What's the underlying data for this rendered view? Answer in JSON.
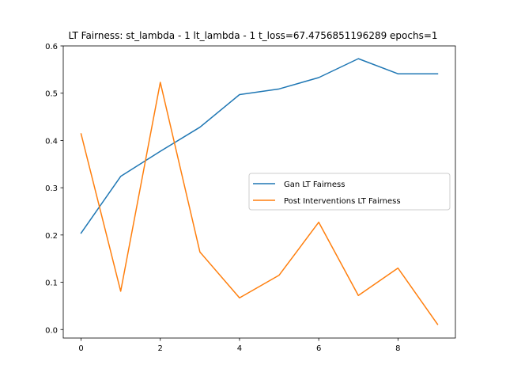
{
  "chart_data": {
    "type": "line",
    "title": "LT Fairness: st_lambda - 1 lt_lambda - 1 t_loss=67.4756851196289 epochs=1",
    "xlabel": "",
    "ylabel": "",
    "x": [
      0,
      1,
      2,
      3,
      4,
      5,
      6,
      7,
      8,
      9
    ],
    "xlim": [
      -0.45,
      9.45
    ],
    "ylim": [
      -0.018,
      0.6
    ],
    "x_ticks": [
      0,
      2,
      4,
      6,
      8
    ],
    "y_ticks": [
      0.0,
      0.1,
      0.2,
      0.3,
      0.4,
      0.5,
      0.6
    ],
    "y_tick_labels": [
      "0.0",
      "0.1",
      "0.2",
      "0.3",
      "0.4",
      "0.5",
      "0.6"
    ],
    "grid": false,
    "legend_position": "center-right",
    "series": [
      {
        "name": "Gan LT Fairness",
        "color": "#1f77b4",
        "values": [
          0.204,
          0.324,
          0.377,
          0.428,
          0.497,
          0.509,
          0.533,
          0.573,
          0.541,
          0.541
        ]
      },
      {
        "name": "Post Interventions LT Fairness",
        "color": "#ff7f0e",
        "values": [
          0.414,
          0.081,
          0.523,
          0.164,
          0.067,
          0.115,
          0.227,
          0.072,
          0.13,
          0.011
        ]
      }
    ]
  }
}
